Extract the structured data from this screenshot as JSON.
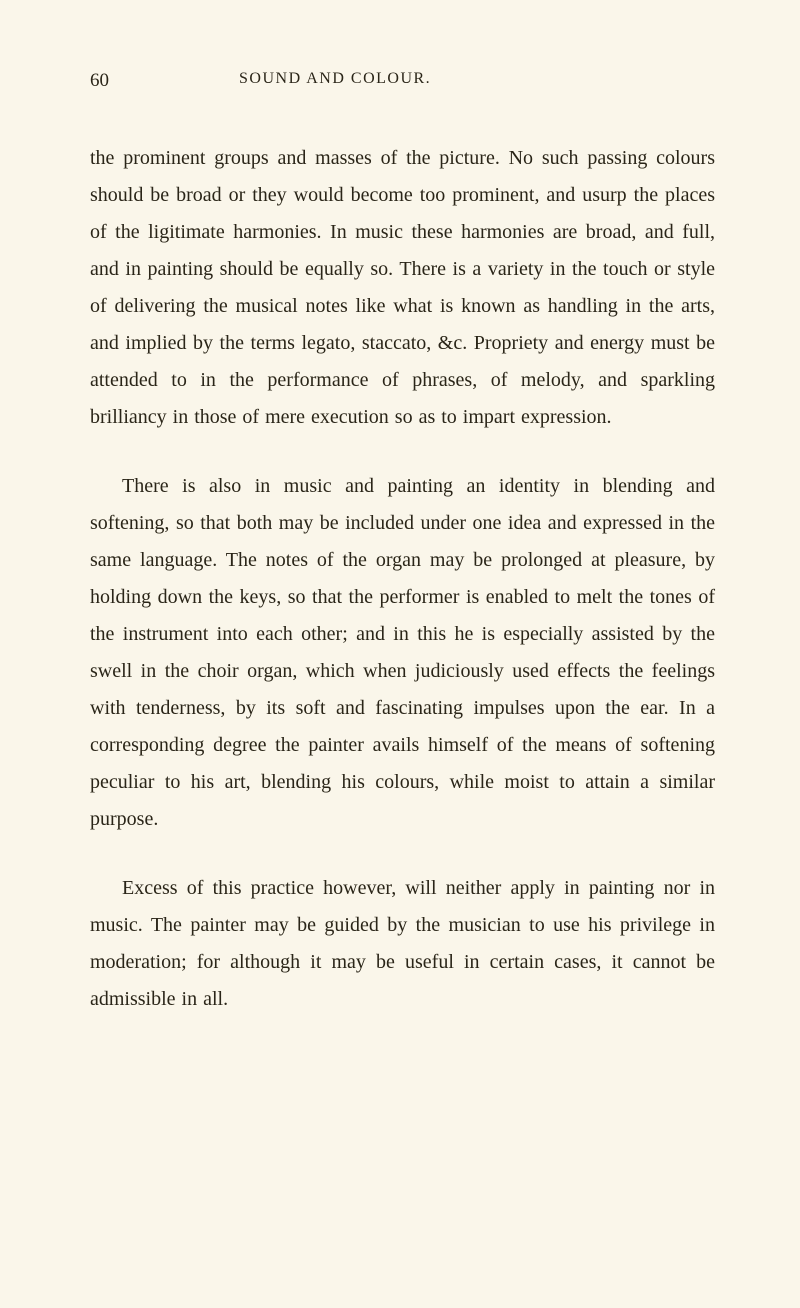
{
  "page": {
    "number": "60",
    "header_title": "SOUND AND COLOUR.",
    "background_color": "#faf6ea",
    "text_color": "#2a2518",
    "font_family": "Georgia, Times New Roman, serif",
    "body_fontsize": 20,
    "header_fontsize": 17,
    "line_height": 1.85
  },
  "paragraphs": {
    "p1": "the prominent groups and masses of the picture. No such passing colours should be broad or they would become too prominent, and usurp the places of the ligitimate harmonies. In music these harmonies are broad, and full, and in painting should be equally so. There is a variety in the touch or style of delivering the musical notes like what is known as handling in the arts, and implied by the terms legato, staccato, &c. Propriety and energy must be attended to in the performance of phrases, of melody, and sparkling brilliancy in those of mere execution so as to impart expression.",
    "p2": "There is also in music and painting an identity in blending and softening, so that both may be included under one idea and expressed in the same language. The notes of the organ may be prolonged at pleasure, by holding down the keys, so that the performer is enabled to melt the tones of the instrument into each other; and in this he is especially assisted by the swell in the choir organ, which when judiciously used effects the feelings with tenderness, by its soft and fascinating impulses upon the ear. In a corresponding degree the painter avails himself of the means of softening peculiar to his art, blending his colours, while moist to attain a similar purpose.",
    "p3": "Excess of this practice however, will neither apply in painting nor in music. The painter may be guided by the musician to use his privilege in moderation; for although it may be useful in certain cases, it cannot be admissible in all."
  }
}
